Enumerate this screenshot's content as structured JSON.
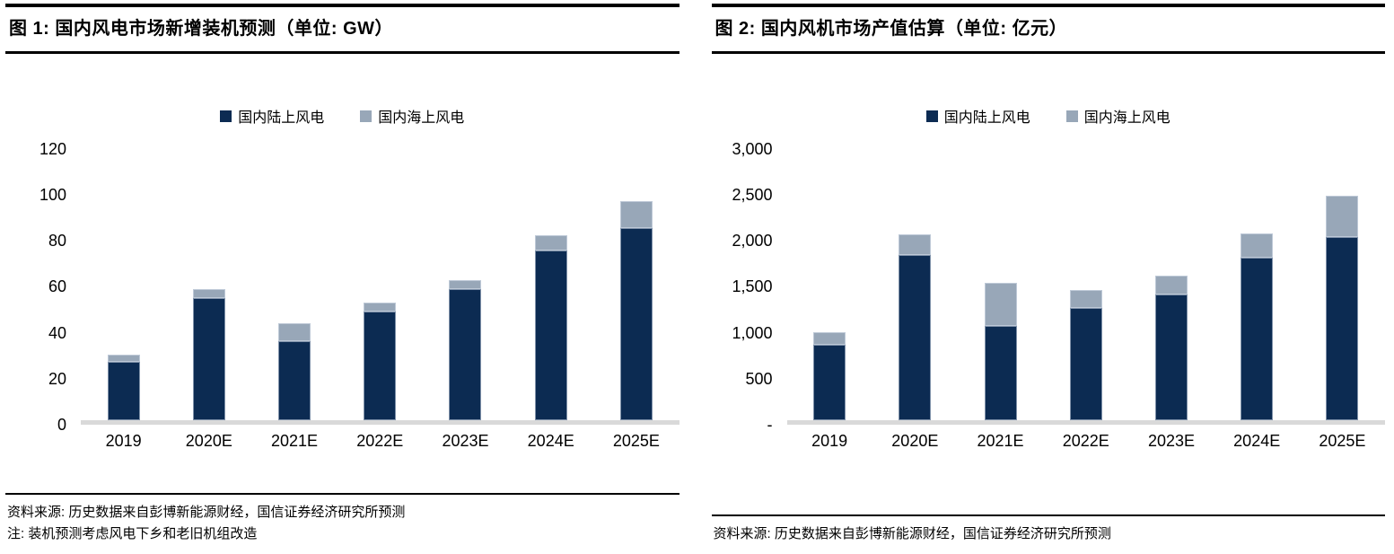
{
  "colors": {
    "onshore": "#0c2b52",
    "offshore": "#98a7b8",
    "baseline": "#d9d9d9",
    "rule": "#000000"
  },
  "figures": [
    {
      "title": "图 1: 国内风电市场新增装机预测（单位: GW）",
      "source": "资料来源: 历史数据来自彭博新能源财经，国信证券经济研究所预测",
      "note": "注: 装机预测考虑风电下乡和老旧机组改造"
    },
    {
      "title": "图 2: 国内风机市场产值估算（单位: 亿元）",
      "source": "资料来源: 历史数据来自彭博新能源财经，国信证券经济研究所预测",
      "note": ""
    }
  ],
  "chart_data": [
    {
      "type": "bar",
      "stacked": true,
      "title": "国内风电市场新增装机预测",
      "unit": "GW",
      "categories": [
        "2019",
        "2020E",
        "2021E",
        "2022E",
        "2023E",
        "2024E",
        "2025E"
      ],
      "series": [
        {
          "name": "国内陆上风电",
          "color": "#0c2b52",
          "values": [
            26,
            54,
            35,
            48,
            58,
            75,
            85
          ]
        },
        {
          "name": "国内海上风电",
          "color": "#98a7b8",
          "values": [
            3,
            4,
            8,
            4,
            4,
            7,
            12
          ]
        }
      ],
      "totals": [
        29,
        58,
        43,
        52,
        62,
        82,
        97
      ],
      "ylim": [
        0,
        120
      ],
      "y_tick_labels": [
        "0",
        "20",
        "40",
        "60",
        "80",
        "100",
        "120"
      ],
      "grid": false,
      "legend_position": "top"
    },
    {
      "type": "bar",
      "stacked": true,
      "title": "国内风机市场产值估算",
      "unit": "亿元",
      "categories": [
        "2019",
        "2020E",
        "2021E",
        "2022E",
        "2023E",
        "2024E",
        "2025E"
      ],
      "series": [
        {
          "name": "国内陆上风电",
          "color": "#0c2b52",
          "values": [
            830,
            1830,
            1040,
            1240,
            1390,
            1800,
            2030
          ]
        },
        {
          "name": "国内海上风电",
          "color": "#98a7b8",
          "values": [
            140,
            230,
            480,
            200,
            210,
            270,
            450
          ]
        }
      ],
      "totals": [
        970,
        2060,
        1520,
        1440,
        1600,
        2070,
        2480
      ],
      "ylim": [
        0,
        3000
      ],
      "y_tick_labels": [
        "-",
        "500",
        "1,000",
        "1,500",
        "2,000",
        "2,500",
        "3,000"
      ],
      "grid": false,
      "legend_position": "top"
    }
  ]
}
